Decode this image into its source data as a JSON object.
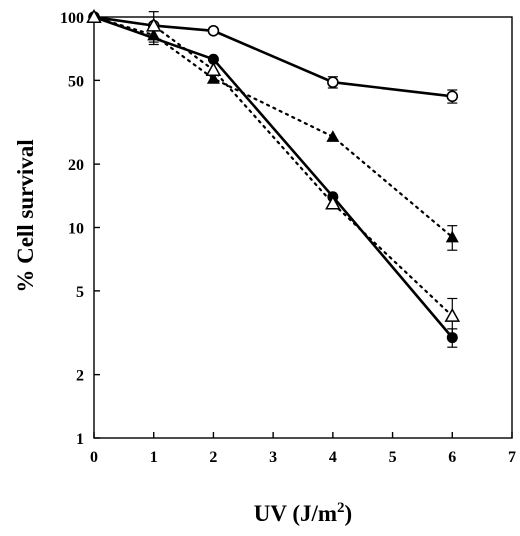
{
  "chart_data": {
    "type": "line",
    "title": "",
    "xlabel": "UV (J/m",
    "xlabel_superscript": "2",
    "xlabel_close": ")",
    "ylabel": "% Cell survival",
    "x_scale": "linear",
    "y_scale": "log",
    "xlim": [
      0,
      7
    ],
    "ylim": [
      1,
      100
    ],
    "x_ticks": [
      0,
      1,
      2,
      3,
      4,
      5,
      6,
      7
    ],
    "y_ticks": [
      1,
      2,
      5,
      10,
      20,
      50,
      100
    ],
    "grid": false,
    "legend": "none",
    "series": [
      {
        "marker": "open-circle",
        "line_style": "solid",
        "color": "#000000",
        "x": [
          0,
          1,
          2,
          4,
          6
        ],
        "y": [
          100,
          91,
          86,
          49,
          42
        ],
        "error": [
          0,
          0,
          0,
          3,
          3
        ]
      },
      {
        "marker": "filled-triangle",
        "line_style": "dotted",
        "color": "#000000",
        "x": [
          0,
          1,
          2,
          4,
          6
        ],
        "y": [
          100,
          82,
          51,
          27,
          9
        ],
        "error": [
          0,
          8,
          0,
          0,
          1.2
        ]
      },
      {
        "marker": "filled-circle",
        "line_style": "solid",
        "color": "#000000",
        "x": [
          0,
          2,
          4,
          6
        ],
        "y": [
          100,
          63,
          14,
          3
        ],
        "error": [
          0,
          0,
          0,
          0.3
        ]
      },
      {
        "marker": "open-triangle",
        "line_style": "dotted",
        "color": "#000000",
        "x": [
          0,
          1,
          2,
          4,
          6
        ],
        "y": [
          100,
          91,
          56,
          13,
          3.8
        ],
        "error": [
          0,
          15,
          0,
          0,
          0.8
        ]
      }
    ]
  }
}
